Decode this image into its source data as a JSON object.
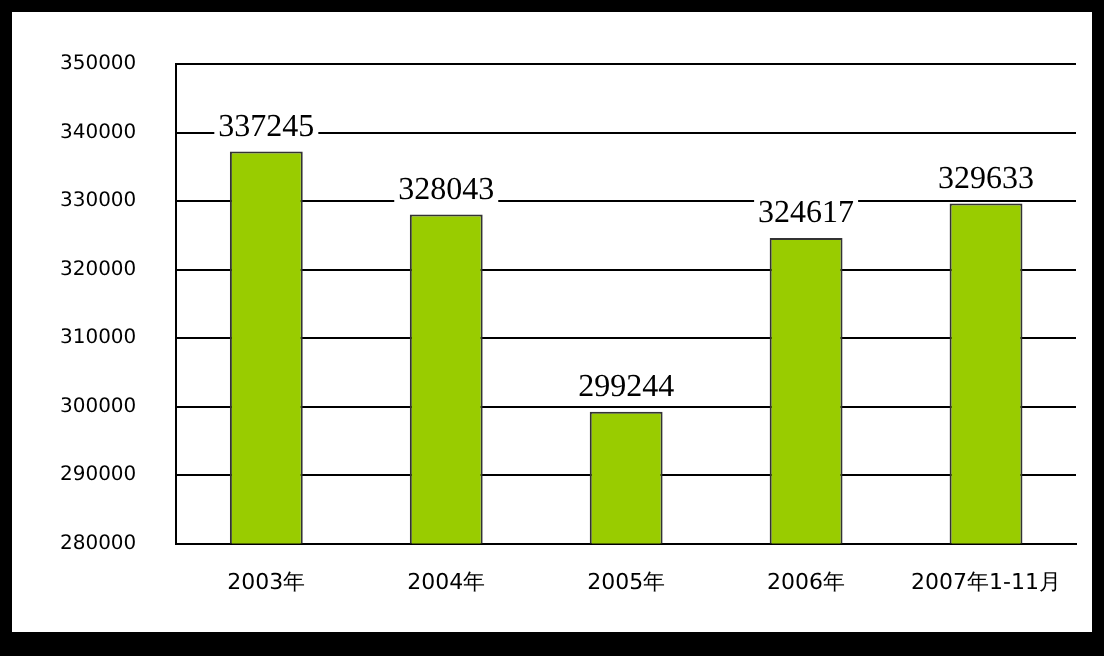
{
  "chart_data": {
    "type": "bar",
    "categories": [
      "2003年",
      "2004年",
      "2005年",
      "2006年",
      "2007年1-11月"
    ],
    "values": [
      337245,
      328043,
      299244,
      324617,
      329633
    ],
    "color": "#99cc00",
    "ylim": [
      280000,
      350000
    ],
    "yticks": [
      280000,
      290000,
      300000,
      310000,
      320000,
      330000,
      340000,
      350000
    ],
    "grid": "y",
    "data_labels": true,
    "legend": false
  }
}
